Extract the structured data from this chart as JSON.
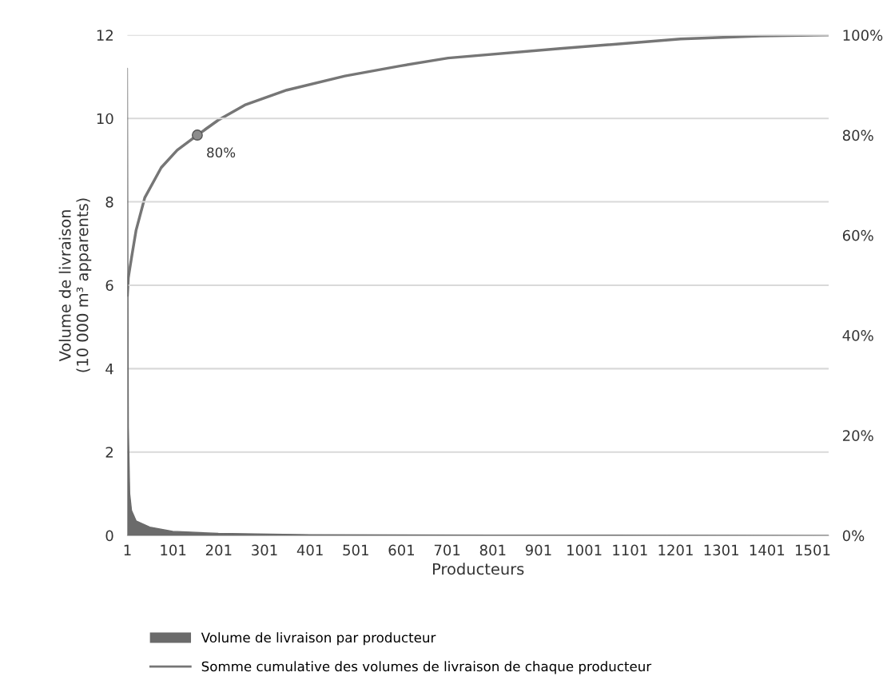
{
  "chart_data": {
    "type": "area",
    "xlabel": "Producteurs",
    "ylabel": "Volume de livraison\n(10 000 m³ apparents)",
    "xlim": [
      1,
      1536
    ],
    "xticks": [
      1,
      101,
      201,
      301,
      401,
      501,
      601,
      701,
      801,
      901,
      1001,
      1101,
      1201,
      1301,
      1401,
      1501
    ],
    "ylim": [
      0,
      12
    ],
    "yticks": [
      0,
      2,
      4,
      6,
      8,
      10,
      12
    ],
    "y2lim": [
      0,
      100
    ],
    "y2ticks": [
      {
        "value": 0,
        "label": "0%"
      },
      {
        "value": 20,
        "label": "20%"
      },
      {
        "value": 40,
        "label": "40%"
      },
      {
        "value": 60,
        "label": "60%"
      },
      {
        "value": 80,
        "label": "80%"
      },
      {
        "value": 100,
        "label": "100%"
      }
    ],
    "grid": "y",
    "legend": "bottom",
    "annotations": [
      {
        "text": "80%",
        "x": 154,
        "y": 9.6
      }
    ],
    "series": [
      {
        "name": "Volume de livraison par producteur",
        "color": "#6b6b6b",
        "x": [
          1,
          3,
          6,
          10,
          20,
          50,
          100,
          200,
          400,
          800,
          1536
        ],
        "values": [
          11.2,
          2.6,
          1.0,
          0.6,
          0.35,
          0.2,
          0.1,
          0.05,
          0.02,
          0.01,
          0
        ]
      },
      {
        "name": "Somme cumulative des volumes de livraison de chaque producteur",
        "type": "line",
        "axis": "y2",
        "color": "#767676",
        "x": [
          1,
          3,
          10,
          20,
          39,
          75,
          110,
          154,
          200,
          258,
          350,
          477,
          597,
          703,
          948,
          1212,
          1387,
          1536
        ],
        "values": [
          48,
          51.5,
          55.5,
          61,
          67.5,
          73.5,
          77,
          80,
          83,
          86,
          89,
          91.8,
          93.8,
          95.4,
          97.3,
          99.2,
          99.8,
          100
        ]
      }
    ]
  }
}
